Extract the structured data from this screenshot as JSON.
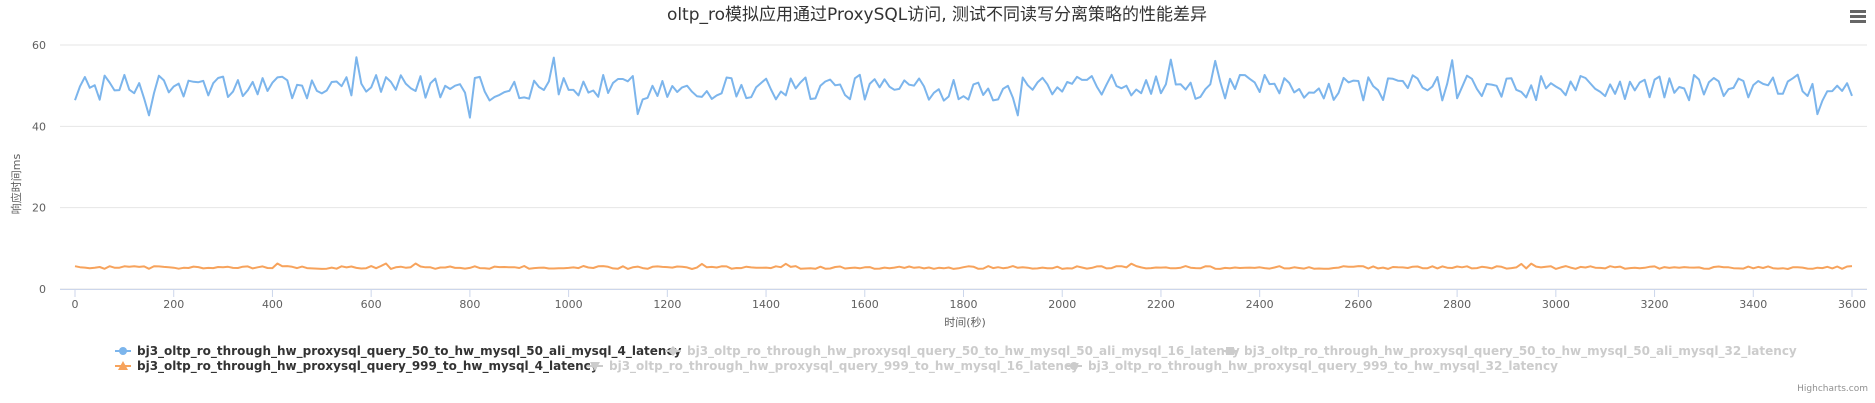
{
  "chart_data": {
    "type": "line",
    "title": "oltp_ro模拟应用通过ProxySQL访问, 测试不同读写分离策略的性能差异",
    "xlabel": "时间(秒)",
    "ylabel": "响应时间ms",
    "xlim": [
      0,
      3600
    ],
    "ylim": [
      0,
      60
    ],
    "x_ticks": [
      "0",
      "200",
      "400",
      "600",
      "800",
      "1000",
      "1200",
      "1400",
      "1600",
      "1800",
      "2000",
      "2200",
      "2400",
      "2600",
      "2800",
      "3000",
      "3200",
      "3400",
      "3600"
    ],
    "y_ticks": [
      "0",
      "20",
      "40",
      "60"
    ],
    "x_step": 10,
    "series": [
      {
        "name": "bj3_oltp_ro_through_hw_proxysql_query_50_to_hw_mysql_50_ali_mysql_4_latency",
        "color": "#7cb5ec",
        "marker": "circle",
        "visible": true,
        "mean": 49.5,
        "amplitude": 3.2,
        "spike_max": 57.0,
        "spike_min": 42.0
      },
      {
        "name": "bj3_oltp_ro_through_hw_proxysql_query_50_to_hw_mysql_50_ali_mysql_16_latency",
        "color": "#cccccc",
        "marker": "diamond",
        "visible": false
      },
      {
        "name": "bj3_oltp_ro_through_hw_proxysql_query_50_to_hw_mysql_50_ali_mysql_32_latency",
        "color": "#cccccc",
        "marker": "square",
        "visible": false
      },
      {
        "name": "bj3_oltp_ro_through_hw_proxysql_query_999_to_hw_mysql_4_latency",
        "color": "#f7a35c",
        "marker": "triangle",
        "visible": true,
        "mean": 5.3,
        "amplitude": 0.35,
        "spike_max": 6.3,
        "spike_min": 4.9
      },
      {
        "name": "bj3_oltp_ro_through_hw_proxysql_query_999_to_hw_mysql_16_latency",
        "color": "#cccccc",
        "marker": "triangle-down",
        "visible": false
      },
      {
        "name": "bj3_oltp_ro_through_hw_proxysql_query_999_to_hw_mysql_32_latency",
        "color": "#cccccc",
        "marker": "circle",
        "visible": false
      }
    ]
  },
  "ui": {
    "menu_icon": "hamburger-menu-icon",
    "credits": "Highcharts.com"
  }
}
